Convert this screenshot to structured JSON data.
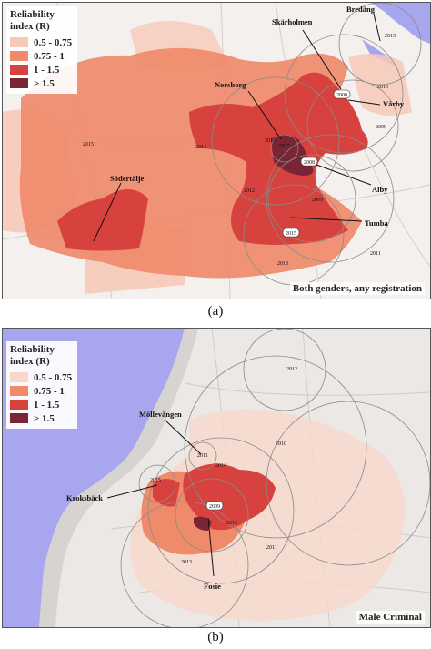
{
  "panels": [
    {
      "id": "a",
      "label": "(a)",
      "caption": "Both genders, any registration",
      "legend": {
        "title_line1": "Reliability",
        "title_line2": "index (R)",
        "items": [
          {
            "label": "0.5 - 0.75",
            "color": "#f7c9b8"
          },
          {
            "label": "0.75 - 1",
            "color": "#ef8a6a"
          },
          {
            "label": "1 - 1.5",
            "color": "#d8423e"
          },
          {
            "label": "> 1.5",
            "color": "#7a2535"
          }
        ]
      },
      "places": [
        "Skärholmen",
        "Bredäng",
        "Norsborg",
        "Vårby",
        "Alby",
        "Tumba",
        "Södertälje"
      ],
      "years": [
        "2015",
        "2008",
        "2013",
        "2009",
        "2013",
        "2007",
        "2008",
        "2014",
        "2015",
        "2012",
        "2009",
        "2015",
        "2011",
        "2013"
      ]
    },
    {
      "id": "b",
      "label": "(b)",
      "caption": "Male Criminal",
      "legend": {
        "title_line1": "Reliability",
        "title_line2": "index (R)",
        "items": [
          {
            "label": "0.5 - 0.75",
            "color": "#f7d8cc"
          },
          {
            "label": "0.75 - 1",
            "color": "#ef8a6a"
          },
          {
            "label": "1 - 1.5",
            "color": "#d8423e"
          },
          {
            "label": "> 1.5",
            "color": "#7a2535"
          }
        ]
      },
      "places": [
        "Möllevången",
        "Kroksbäck",
        "Fosie"
      ],
      "years": [
        "2012",
        "2010",
        "2011",
        "2014",
        "2015",
        "2009",
        "2012",
        "2013",
        "2011"
      ]
    }
  ],
  "colors": {
    "water": "#a7a6ef",
    "land_a": "#f3f0ee",
    "land_b": "#ebe8e5"
  }
}
